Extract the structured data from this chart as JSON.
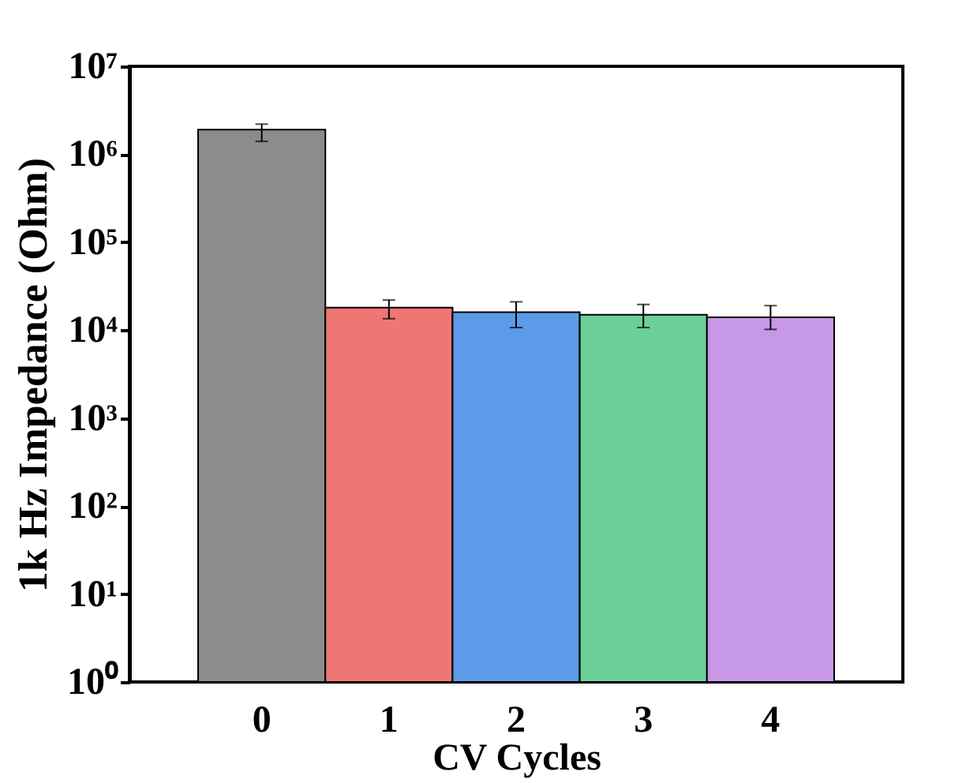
{
  "chart_data": {
    "type": "bar",
    "xlabel": "CV Cycles",
    "ylabel": "1k Hz Impedance (Ohm)",
    "categories": [
      "0",
      "1",
      "2",
      "3",
      "4"
    ],
    "values": [
      1900000,
      18000,
      16000,
      15000,
      14000
    ],
    "colors": [
      "#8c8c8c",
      "#f07575",
      "#5b9be8",
      "#6ccf98",
      "#c798e6"
    ],
    "errors": [
      [
        1400000,
        2200000
      ],
      [
        13500,
        22000
      ],
      [
        10700,
        21000
      ],
      [
        10700,
        19600
      ],
      [
        10200,
        19000
      ]
    ],
    "log": true,
    "ylim": [
      1,
      10000000
    ],
    "yticks": [
      {
        "value": 1,
        "label": "10⁰"
      },
      {
        "value": 10,
        "label": "10¹"
      },
      {
        "value": 100,
        "label": "10²"
      },
      {
        "value": 1000,
        "label": "10³"
      },
      {
        "value": 10000,
        "label": "10⁴"
      },
      {
        "value": 100000,
        "label": "10⁵"
      },
      {
        "value": 1000000,
        "label": "10⁶"
      },
      {
        "value": 10000000,
        "label": "10⁷"
      }
    ],
    "grid": false
  }
}
